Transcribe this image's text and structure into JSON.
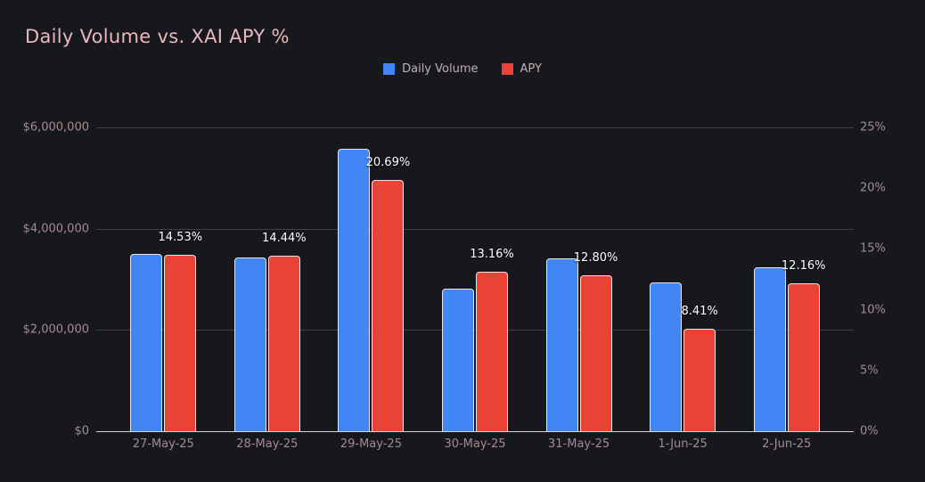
{
  "title": "Daily Volume vs. XAI APY %",
  "legend": [
    {
      "label": "Daily Volume",
      "color": "#4285f4"
    },
    {
      "label": "APY",
      "color": "#ea4335"
    }
  ],
  "colors": {
    "background": "#16181d",
    "title_text": "#e9b7bc",
    "tick_text": "#a58a8e",
    "legend_text": "#c2b0b2",
    "gridline": "#3e4045",
    "axis_line": "#d6d6d6",
    "bar_border": "#e6e6e6",
    "data_label_text": "#ffffff",
    "volume_bar": "#4285f4",
    "apy_bar": "#ea4335"
  },
  "chart_data": {
    "type": "bar",
    "title": "Daily Volume vs. XAI APY %",
    "categories": [
      "27-May-25",
      "28-May-25",
      "29-May-25",
      "30-May-25",
      "31-May-25",
      "1-Jun-25",
      "2-Jun-25"
    ],
    "series": [
      {
        "name": "Daily Volume",
        "axis": "left",
        "color": "#4285f4",
        "values": [
          3500000,
          3440000,
          5580000,
          2810000,
          3410000,
          2930000,
          3240000
        ]
      },
      {
        "name": "APY",
        "axis": "right",
        "color": "#ea4335",
        "values": [
          14.53,
          14.44,
          20.69,
          13.16,
          12.8,
          8.41,
          12.16
        ],
        "data_labels": [
          "14.53%",
          "14.44%",
          "20.69%",
          "13.16%",
          "12.80%",
          "8.41%",
          "12.16%"
        ]
      }
    ],
    "left_axis": {
      "min": 0,
      "max": 6000000,
      "tick_values": [
        6000000,
        4000000,
        2000000,
        0
      ],
      "tick_labels": [
        "$6,000,000",
        "$4,000,000",
        "$2,000,000",
        "$0"
      ]
    },
    "right_axis": {
      "min": 0,
      "max": 25,
      "tick_values": [
        25,
        20,
        15,
        10,
        5,
        0
      ],
      "tick_labels": [
        "25%",
        "20%",
        "15%",
        "10%",
        "5%",
        "0%"
      ]
    },
    "legend_position": "top-center",
    "grid": "horizontal lines at left-axis ticks only"
  }
}
